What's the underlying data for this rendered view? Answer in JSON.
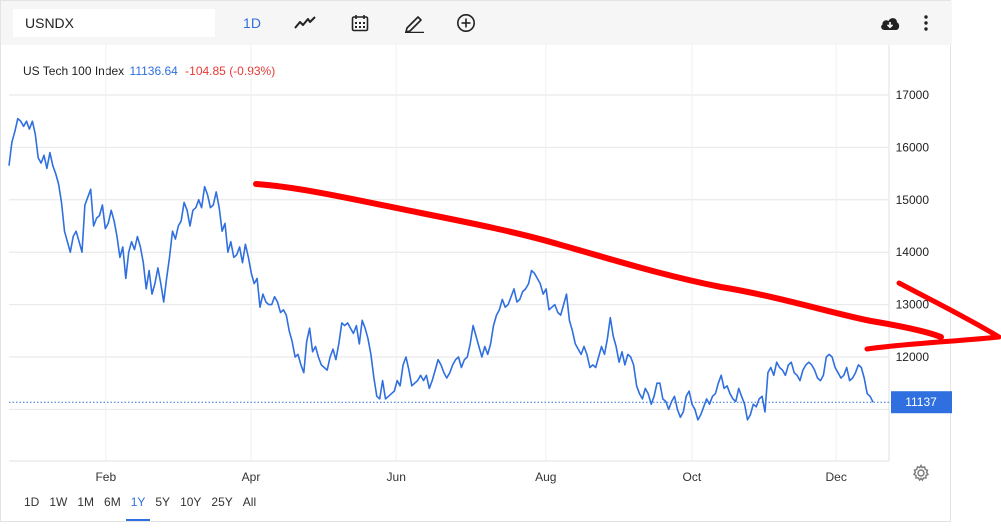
{
  "toolbar": {
    "symbol": "USNDX",
    "interval": "1D",
    "icons": [
      "line-chart-icon",
      "calendar-icon",
      "draw-pencil-icon",
      "add-circle-icon",
      "download-cloud-icon",
      "more-vert-icon"
    ]
  },
  "legend": {
    "name": "US Tech 100 Index",
    "price": "11136.64",
    "change": "-104.85 (-0.93%)"
  },
  "colors": {
    "line": "#2f6fdf",
    "annotation": "#ff0000",
    "negative": "#e53935",
    "grid": "#e6e6e6"
  },
  "ranges": [
    "1D",
    "1W",
    "1M",
    "6M",
    "1Y",
    "5Y",
    "10Y",
    "25Y",
    "All"
  ],
  "active_range": "1Y",
  "chart_data": {
    "type": "line",
    "title": "US Tech 100 Index",
    "yticks": [
      12000,
      13000,
      14000,
      15000,
      16000,
      17000
    ],
    "ylim": [
      9950,
      17300
    ],
    "xticks": [
      {
        "label": "Feb",
        "t": 0.11
      },
      {
        "label": "Apr",
        "t": 0.275
      },
      {
        "label": "Jun",
        "t": 0.44
      },
      {
        "label": "Aug",
        "t": 0.61
      },
      {
        "label": "Oct",
        "t": 0.776
      },
      {
        "label": "Dec",
        "t": 0.94
      }
    ],
    "last_price": 11137,
    "last_price_label": "11137",
    "grid": true,
    "series": [
      {
        "values": [
          15650,
          16100,
          16300,
          16550,
          16500,
          16400,
          16500,
          16350,
          16500,
          16250,
          15800,
          15700,
          15850,
          15600,
          15900,
          15650,
          15500,
          15300,
          14950,
          14400,
          14200,
          14000,
          14300,
          14400,
          14200,
          14000,
          14900,
          15050,
          15200,
          14500,
          14650,
          14700,
          14900,
          14450,
          14550,
          14800,
          14600,
          14300,
          13900,
          14100,
          13500,
          14000,
          14200,
          14050,
          14300,
          14100,
          13800,
          13300,
          13650,
          13200,
          13400,
          13700,
          13400,
          13050,
          13500,
          13900,
          14400,
          14250,
          14500,
          14600,
          14950,
          14800,
          14500,
          14800,
          14850,
          15000,
          14850,
          15250,
          15100,
          14850,
          14900,
          15150,
          14850,
          14400,
          14550,
          14000,
          14200,
          13900,
          13950,
          14100,
          13800,
          14150,
          13900,
          13600,
          13400,
          13500,
          12950,
          13200,
          13050,
          13000,
          13000,
          13150,
          13050,
          12850,
          12900,
          12800,
          12500,
          12300,
          12000,
          12050,
          11850,
          11700,
          12300,
          12550,
          12100,
          12200,
          12000,
          11850,
          11800,
          11750,
          12000,
          12150,
          11950,
          12250,
          12650,
          12600,
          12650,
          12550,
          12450,
          12600,
          12250,
          12700,
          12550,
          12350,
          12050,
          11600,
          11250,
          11200,
          11550,
          11200,
          11250,
          11300,
          11350,
          11550,
          11450,
          11850,
          12000,
          11750,
          11450,
          11500,
          11550,
          11650,
          11550,
          11650,
          11400,
          11550,
          11750,
          11950,
          11850,
          11700,
          11600,
          11700,
          11850,
          11950,
          12000,
          11800,
          11950,
          12000,
          12250,
          12600,
          12400,
          12200,
          12000,
          12200,
          12050,
          12250,
          12600,
          12800,
          12900,
          13100,
          12950,
          13000,
          13150,
          13300,
          13050,
          13100,
          13250,
          13300,
          13400,
          13650,
          13600,
          13500,
          13400,
          13200,
          13300,
          12900,
          12950,
          13000,
          12850,
          12800,
          13000,
          13200,
          12700,
          12500,
          12250,
          12150,
          12050,
          12200,
          12050,
          11800,
          11850,
          11800,
          12000,
          12200,
          12050,
          12350,
          12750,
          12400,
          12200,
          11900,
          12100,
          11850,
          12050,
          12000,
          11850,
          11450,
          11300,
          11200,
          11400,
          11300,
          11100,
          11250,
          11500,
          11500,
          11200,
          11150,
          11000,
          11150,
          11250,
          11000,
          10850,
          10950,
          11250,
          11350,
          11100,
          11000,
          10800,
          10900,
          11050,
          11200,
          11100,
          11250,
          11300,
          11500,
          11650,
          11400,
          11450,
          11300,
          11200,
          11150,
          11400,
          11250,
          11100,
          10800,
          10900,
          11100,
          11050,
          11200,
          11250,
          10950,
          11700,
          11800,
          11650,
          11900,
          11800,
          11750,
          11650,
          11850,
          11900,
          11700,
          11650,
          11550,
          11750,
          11850,
          11900,
          11850,
          11750,
          11600,
          11550,
          11650,
          12000,
          12050,
          12000,
          11800,
          11700,
          11600,
          11650,
          11800,
          11550,
          11600,
          11700,
          11850,
          11800,
          11600,
          11300,
          11250,
          11137
        ]
      }
    ]
  }
}
